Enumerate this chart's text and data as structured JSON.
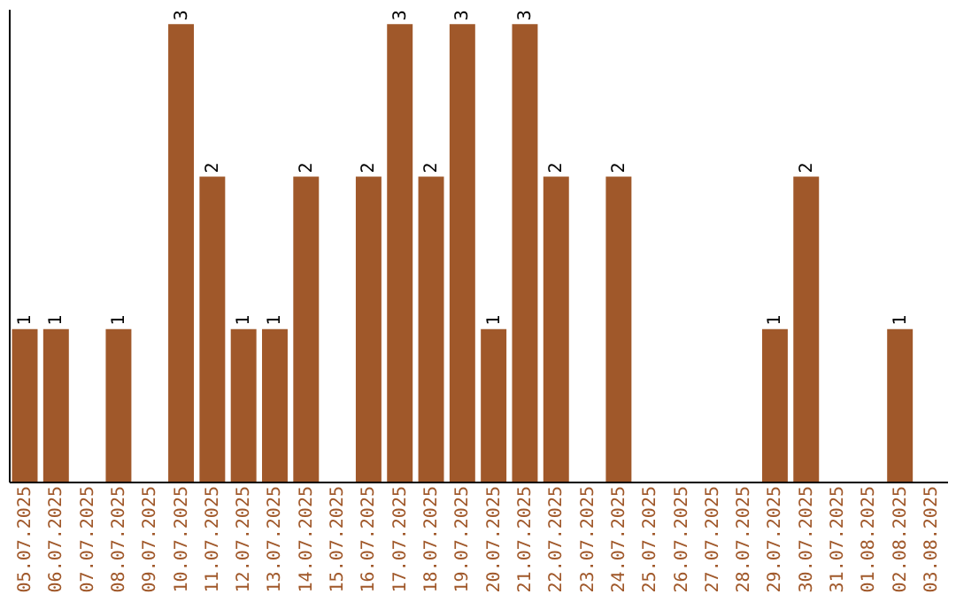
{
  "chart_data": {
    "type": "bar",
    "categories": [
      "05.07.2025",
      "06.07.2025",
      "07.07.2025",
      "08.07.2025",
      "09.07.2025",
      "10.07.2025",
      "11.07.2025",
      "12.07.2025",
      "13.07.2025",
      "14.07.2025",
      "15.07.2025",
      "16.07.2025",
      "17.07.2025",
      "18.07.2025",
      "19.07.2025",
      "20.07.2025",
      "21.07.2025",
      "22.07.2025",
      "23.07.2025",
      "24.07.2025",
      "25.07.2025",
      "26.07.2025",
      "27.07.2025",
      "28.07.2025",
      "29.07.2025",
      "30.07.2025",
      "31.07.2025",
      "01.08.2025",
      "02.08.2025",
      "03.08.2025"
    ],
    "values": [
      1,
      1,
      0,
      1,
      0,
      3,
      2,
      1,
      1,
      2,
      0,
      2,
      3,
      2,
      3,
      1,
      3,
      2,
      0,
      2,
      0,
      0,
      0,
      0,
      1,
      2,
      0,
      0,
      1,
      0
    ],
    "value_labels": [
      "1",
      "1",
      null,
      "1",
      null,
      "3",
      "2",
      "1",
      "1",
      "2",
      null,
      "2",
      "3",
      "2",
      "3",
      "1",
      "3",
      "2",
      null,
      "2",
      null,
      null,
      null,
      null,
      "1",
      "2",
      null,
      null,
      "1",
      null
    ],
    "color": "#a0582a",
    "ylim": [
      0,
      3.1
    ],
    "tick_labels": "x",
    "grid": false
  }
}
